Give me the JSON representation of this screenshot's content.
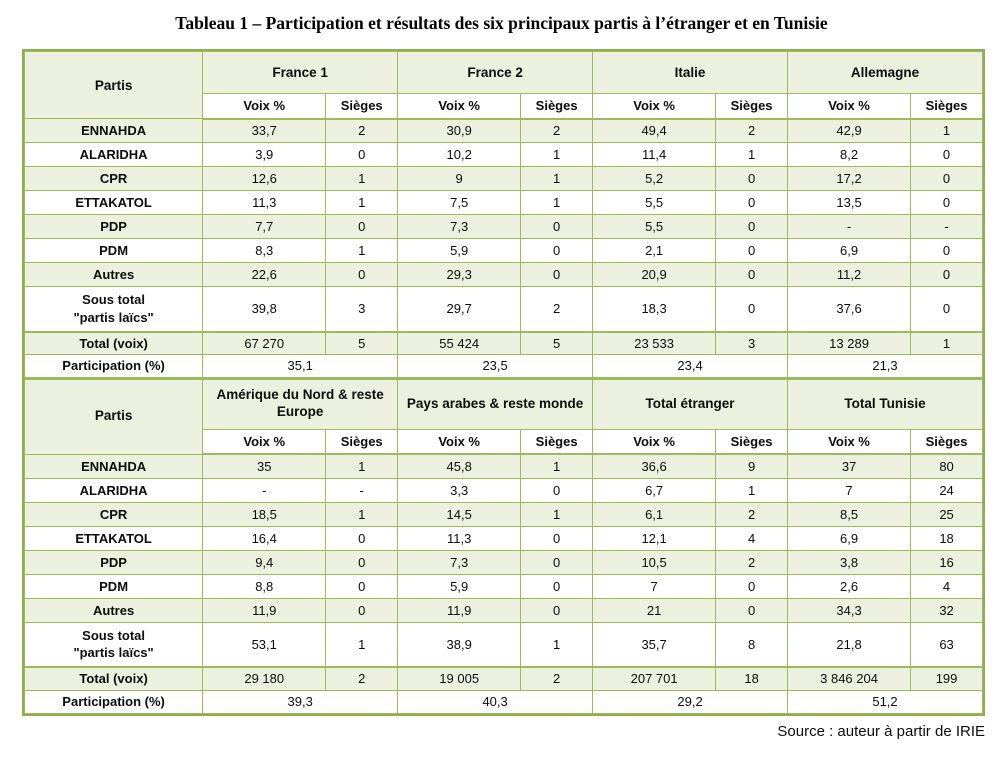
{
  "title": "Tableau 1 –  Participation et résultats des six principaux partis à l’étranger et en Tunisie",
  "source": "Source : auteur à partir de IRIE",
  "colors": {
    "border": "#9cba58",
    "frame_border": "#8fae4e",
    "fill_green": "#ebf1de",
    "fill_white": "#ffffff"
  },
  "labels": {
    "partis": "Partis",
    "voix": "Voix %",
    "sieges": "Sièges"
  },
  "t1": {
    "groups": [
      "France 1",
      "France 2",
      "Italie",
      "Allemagne"
    ],
    "rows": [
      {
        "label": "ENNAHDA",
        "cells": [
          "33,7",
          "2",
          "30,9",
          "2",
          "49,4",
          "2",
          "42,9",
          "1"
        ]
      },
      {
        "label": "ALARIDHA",
        "cells": [
          "3,9",
          "0",
          "10,2",
          "1",
          "11,4",
          "1",
          "8,2",
          "0"
        ]
      },
      {
        "label": "CPR",
        "cells": [
          "12,6",
          "1",
          "9",
          "1",
          "5,2",
          "0",
          "17,2",
          "0"
        ]
      },
      {
        "label": "ETTAKATOL",
        "cells": [
          "11,3",
          "1",
          "7,5",
          "1",
          "5,5",
          "0",
          "13,5",
          "0"
        ]
      },
      {
        "label": "PDP",
        "cells": [
          "7,7",
          "0",
          "7,3",
          "0",
          "5,5",
          "0",
          "-",
          "-"
        ]
      },
      {
        "label": "PDM",
        "cells": [
          "8,3",
          "1",
          "5,9",
          "0",
          "2,1",
          "0",
          "6,9",
          "0"
        ]
      },
      {
        "label": "Autres",
        "cells": [
          "22,6",
          "0",
          "29,3",
          "0",
          "20,9",
          "0",
          "11,2",
          "0"
        ]
      }
    ],
    "st": {
      "label": "Sous total\n\"partis laïcs\"",
      "cells": [
        "39,8",
        "3",
        "29,7",
        "2",
        "18,3",
        "0",
        "37,6",
        "0"
      ]
    },
    "tot": {
      "label": "Total (voix)",
      "cells": [
        "67 270",
        "5",
        "55 424",
        "5",
        "23 533",
        "3",
        "13 289",
        "1"
      ]
    },
    "part": {
      "label": "Participation (%)",
      "cells": [
        "35,1",
        "23,5",
        "23,4",
        "21,3"
      ]
    }
  },
  "t2": {
    "groups": [
      "Amérique du Nord & reste Europe",
      "Pays arabes & reste monde",
      "Total étranger",
      "Total Tunisie"
    ],
    "rows": [
      {
        "label": "ENNAHDA",
        "cells": [
          "35",
          "1",
          "45,8",
          "1",
          "36,6",
          "9",
          "37",
          "80"
        ]
      },
      {
        "label": "ALARIDHA",
        "cells": [
          "-",
          "-",
          "3,3",
          "0",
          "6,7",
          "1",
          "7",
          "24"
        ]
      },
      {
        "label": "CPR",
        "cells": [
          "18,5",
          "1",
          "14,5",
          "1",
          "6,1",
          "2",
          "8,5",
          "25"
        ]
      },
      {
        "label": "ETTAKATOL",
        "cells": [
          "16,4",
          "0",
          "11,3",
          "0",
          "12,1",
          "4",
          "6,9",
          "18"
        ]
      },
      {
        "label": "PDP",
        "cells": [
          "9,4",
          "0",
          "7,3",
          "0",
          "10,5",
          "2",
          "3,8",
          "16"
        ]
      },
      {
        "label": "PDM",
        "cells": [
          "8,8",
          "0",
          "5,9",
          "0",
          "7",
          "0",
          "2,6",
          "4"
        ]
      },
      {
        "label": "Autres",
        "cells": [
          "11,9",
          "0",
          "11,9",
          "0",
          "21",
          "0",
          "34,3",
          "32"
        ]
      }
    ],
    "st": {
      "label": "Sous total\n\"partis laïcs\"",
      "cells": [
        "53,1",
        "1",
        "38,9",
        "1",
        "35,7",
        "8",
        "21,8",
        "63"
      ]
    },
    "tot": {
      "label": "Total (voix)",
      "cells": [
        "29 180",
        "2",
        "19 005",
        "2",
        "207 701",
        "18",
        "3 846 204",
        "199"
      ]
    },
    "part": {
      "label": "Participation (%)",
      "cells": [
        "39,3",
        "40,3",
        "29,2",
        "51,2"
      ]
    }
  }
}
